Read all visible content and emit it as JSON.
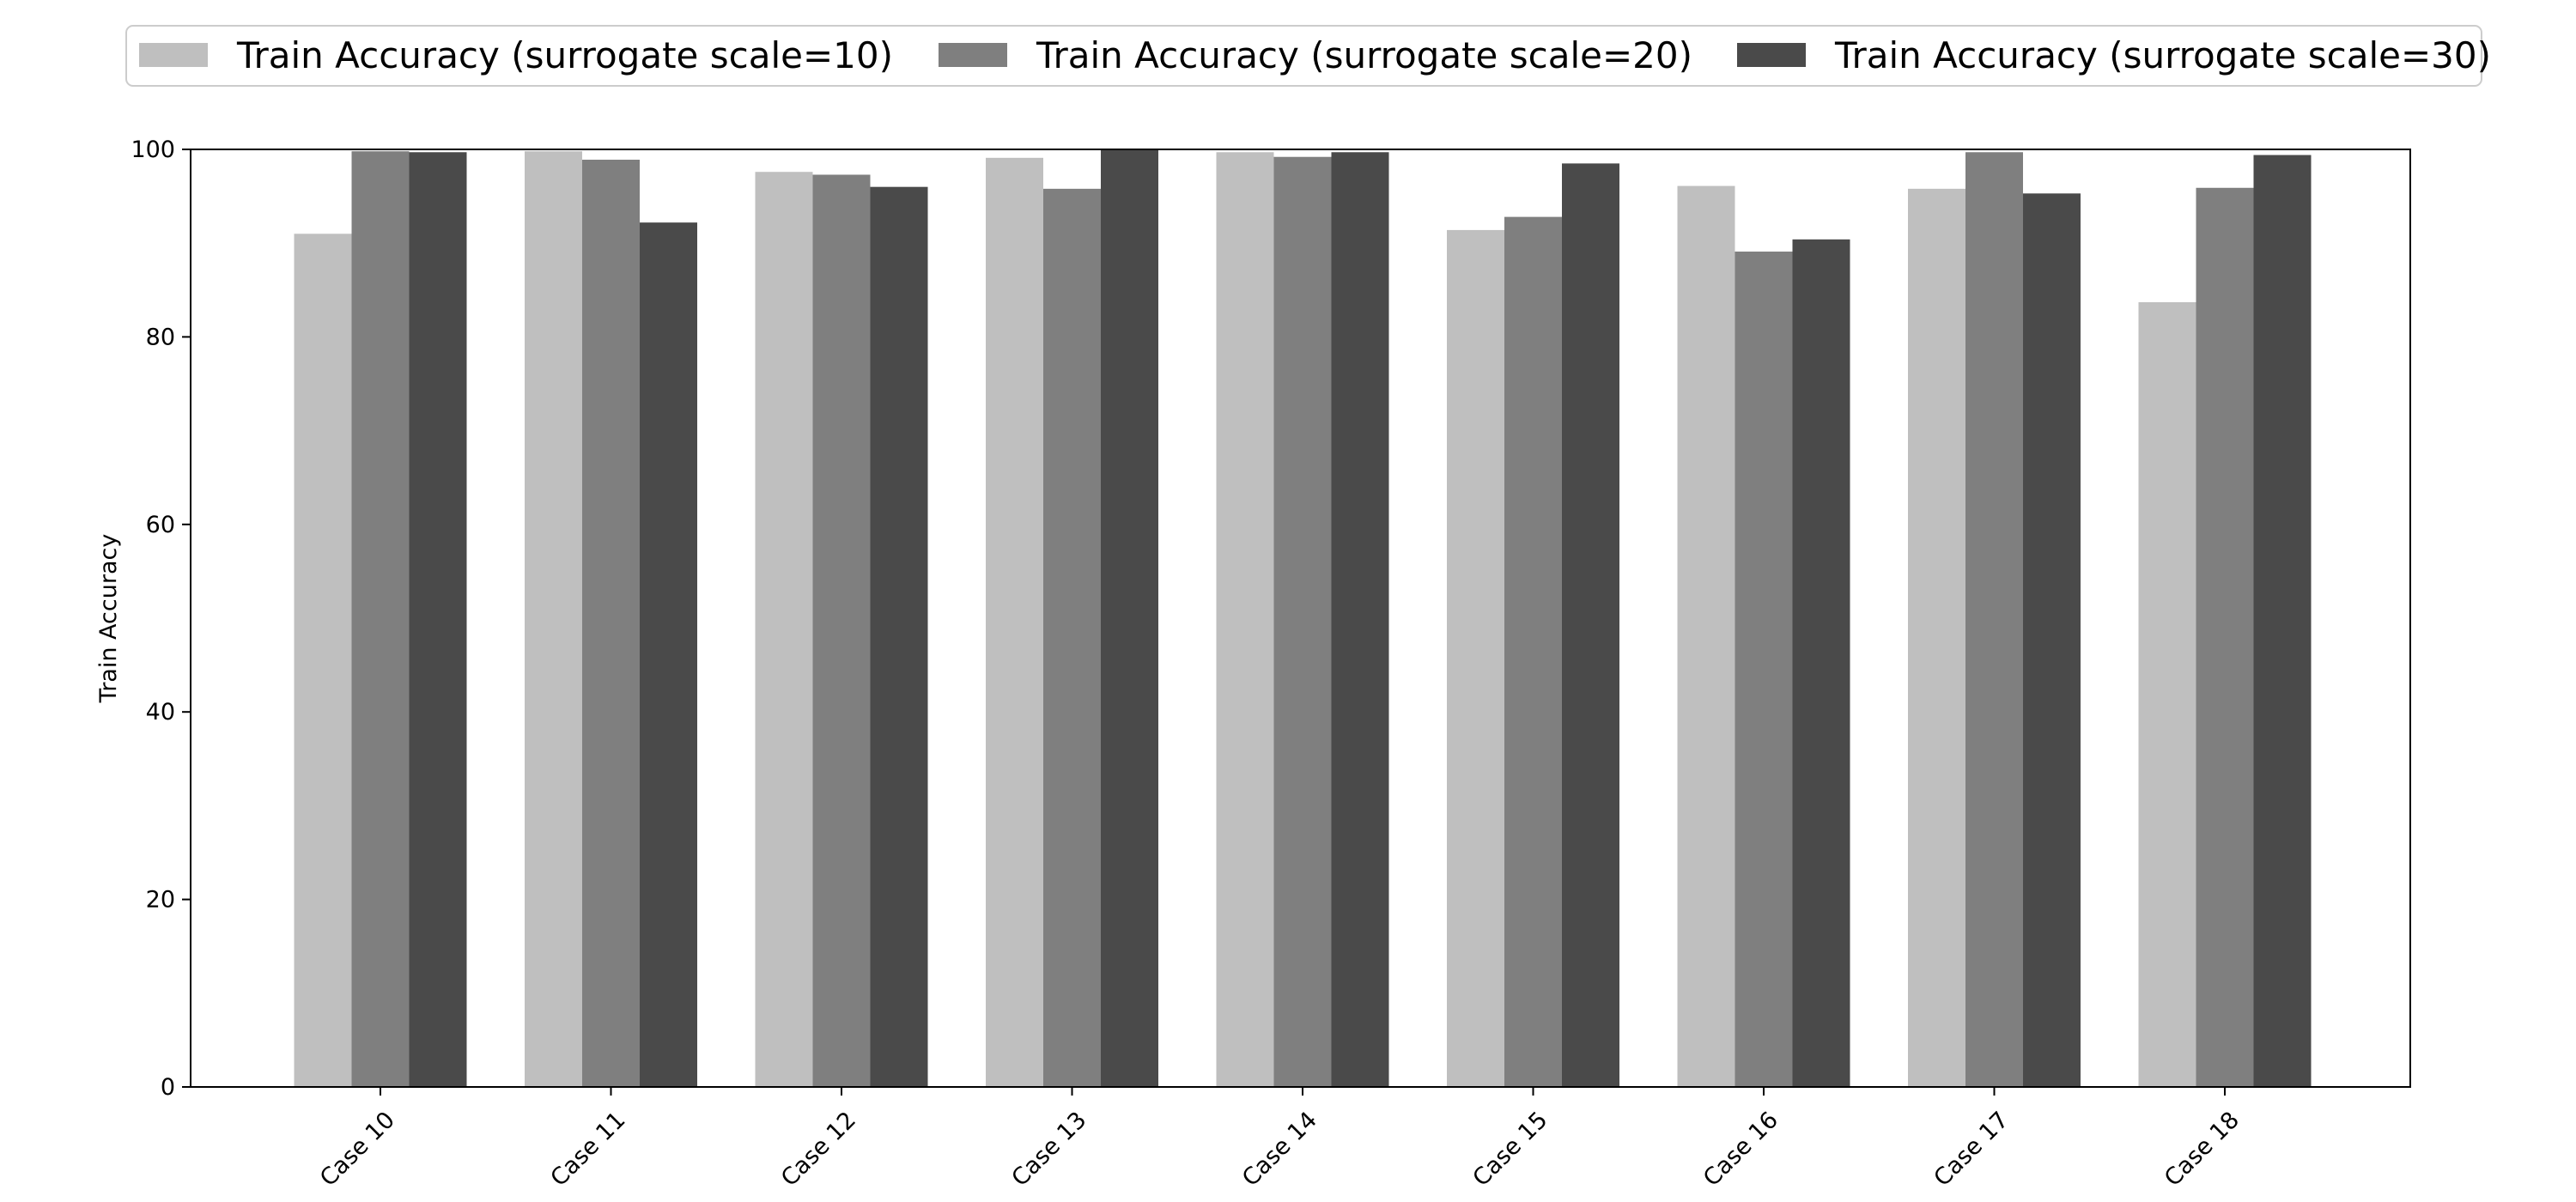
{
  "chart_data": {
    "type": "bar",
    "title": "",
    "xlabel": "",
    "ylabel": "Train Accuracy",
    "ylim": [
      0,
      100
    ],
    "yticks": [
      0,
      20,
      40,
      60,
      80,
      100
    ],
    "grid": false,
    "legend_position": "top",
    "categories": [
      "Case 10",
      "Case 11",
      "Case 12",
      "Case 13",
      "Case 14",
      "Case 15",
      "Case 16",
      "Case 17",
      "Case 18"
    ],
    "series": [
      {
        "name": "Train Accuracy (surrogate scale=10)",
        "color": "#bfbfbf",
        "values": [
          91.0,
          99.8,
          97.6,
          99.1,
          99.7,
          91.4,
          96.1,
          95.8,
          83.7
        ]
      },
      {
        "name": "Train Accuracy (surrogate scale=20)",
        "color": "#7f7f7f",
        "values": [
          99.8,
          98.9,
          97.3,
          95.8,
          99.2,
          92.8,
          89.1,
          99.7,
          95.9
        ]
      },
      {
        "name": "Train Accuracy (surrogate scale=30)",
        "color": "#4a4a4a",
        "values": [
          99.7,
          92.2,
          96.0,
          100.0,
          99.7,
          98.5,
          90.4,
          95.3,
          99.4
        ]
      }
    ]
  }
}
